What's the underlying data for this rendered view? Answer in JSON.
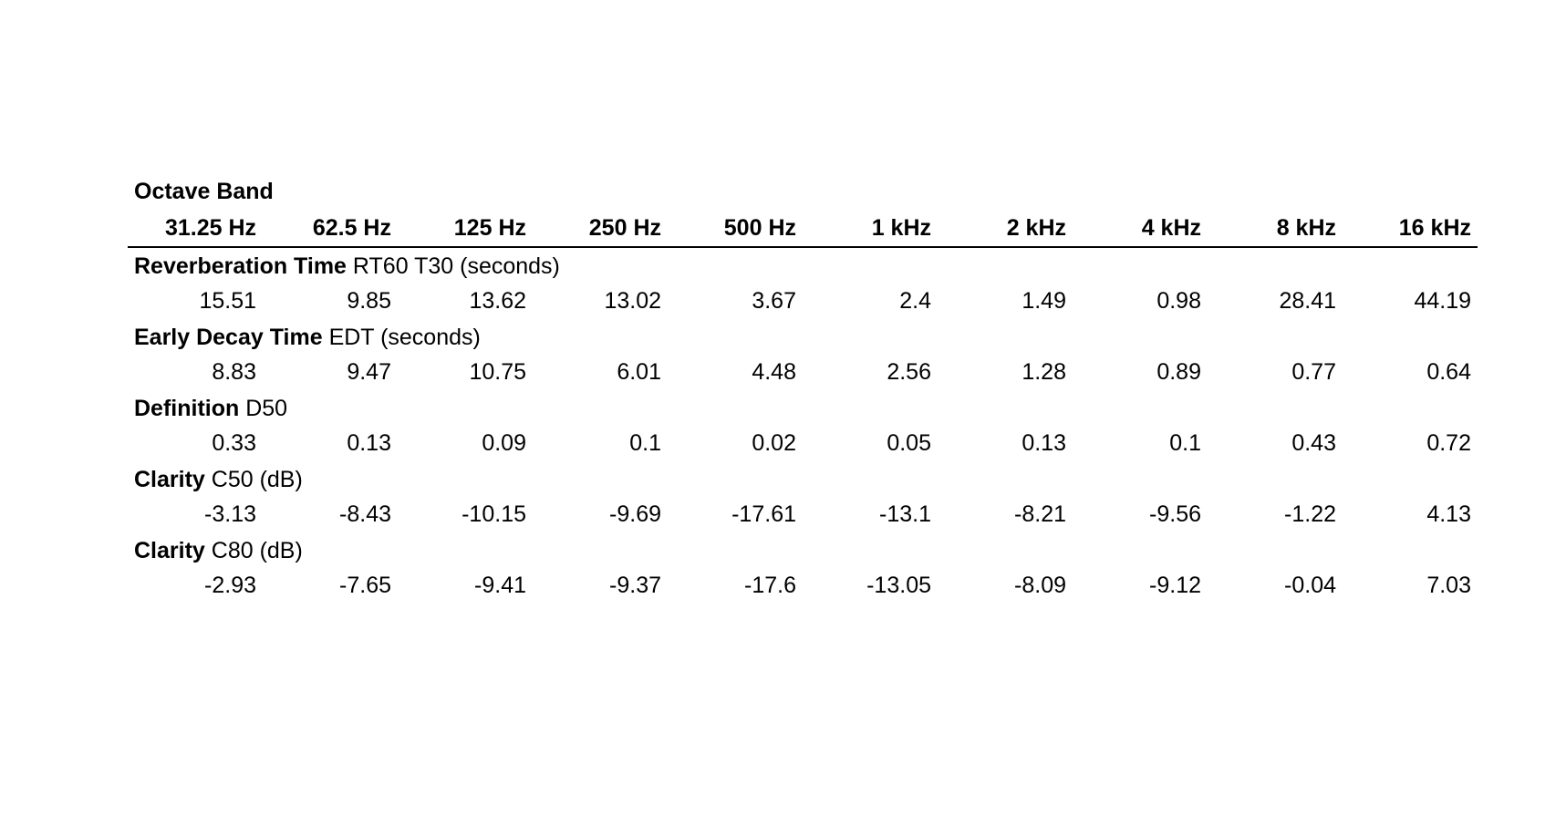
{
  "table": {
    "title": "Octave Band",
    "headers": [
      "31.25 Hz",
      "62.5 Hz",
      "125 Hz",
      "250 Hz",
      "500 Hz",
      "1 kHz",
      "2 kHz",
      "4 kHz",
      "8 kHz",
      "16 kHz"
    ],
    "sections": [
      {
        "label": "Reverberation Time",
        "unit": "RT60 T30 (seconds)",
        "values": [
          15.51,
          9.85,
          13.62,
          13.02,
          3.67,
          2.4,
          1.49,
          0.98,
          28.41,
          44.19
        ]
      },
      {
        "label": "Early Decay Time",
        "unit": "EDT (seconds)",
        "values": [
          8.83,
          9.47,
          10.75,
          6.01,
          4.48,
          2.56,
          1.28,
          0.89,
          0.77,
          0.64
        ]
      },
      {
        "label": "Definition",
        "unit": "D50",
        "values": [
          0.33,
          0.13,
          0.09,
          0.1,
          0.02,
          0.05,
          0.13,
          0.1,
          0.43,
          0.72
        ]
      },
      {
        "label": "Clarity",
        "unit": "C50 (dB)",
        "values": [
          -3.13,
          -8.43,
          -10.15,
          -9.69,
          -17.61,
          -13.1,
          -8.21,
          -9.56,
          -1.22,
          4.13
        ]
      },
      {
        "label": "Clarity",
        "unit": "C80 (dB)",
        "values": [
          -2.93,
          -7.65,
          -9.41,
          -9.37,
          -17.6,
          -13.05,
          -8.09,
          -9.12,
          -0.04,
          7.03
        ]
      }
    ]
  }
}
